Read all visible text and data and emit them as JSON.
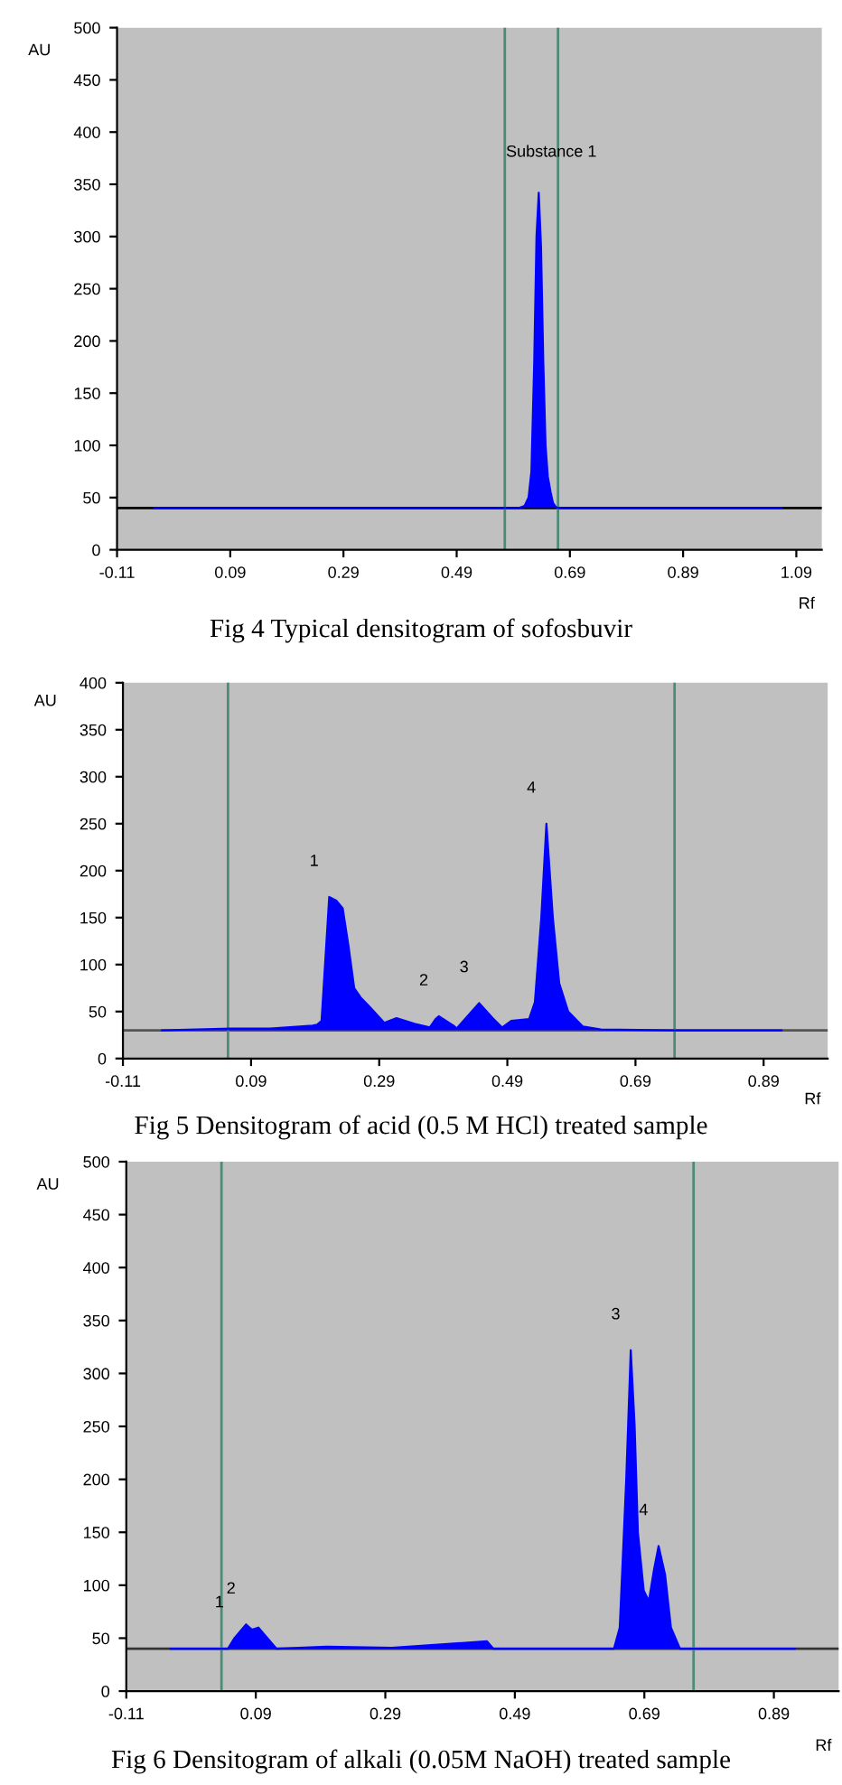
{
  "chart_data": [
    {
      "type": "area",
      "title": "Fig 4 Typical densitogram of sofosbuvir",
      "xlabel": "Rf",
      "ylabel": "AU",
      "x": [
        -0.045,
        0.5,
        0.6,
        0.61,
        0.617,
        0.622,
        0.627,
        0.631,
        0.635,
        0.639,
        0.643,
        0.647,
        0.651,
        0.656,
        0.66,
        0.665,
        0.67,
        0.8,
        1.064
      ],
      "series": [
        {
          "color": "#0000ff",
          "values": [
            40,
            40,
            40,
            42,
            50,
            75,
            180,
            300,
            342,
            290,
            180,
            100,
            70,
            55,
            45,
            41,
            40,
            40,
            40
          ]
        }
      ],
      "xlim": [
        -0.11,
        1.135
      ],
      "ylim": [
        0,
        500
      ],
      "xticks": [
        -0.11,
        0.09,
        0.29,
        0.49,
        0.69,
        0.89,
        1.09
      ],
      "yticks": [
        0,
        50,
        100,
        150,
        200,
        250,
        300,
        350,
        400,
        450,
        500
      ],
      "ref_lines": [
        {
          "axis": "y",
          "value": 40,
          "color": "#000000"
        },
        {
          "axis": "x",
          "value": 0.575,
          "color": "#4e8a78"
        },
        {
          "axis": "x",
          "value": 0.669,
          "color": "#4e8a78"
        }
      ],
      "annotations": [
        {
          "text": "Substance 1",
          "x": 0.635,
          "y": 342
        }
      ],
      "grid": false,
      "legend": false
    },
    {
      "type": "area",
      "title": "Fig 5 Densitogram of acid (0.5 M HCl) treated sample",
      "xlabel": "Rf",
      "ylabel": "AU",
      "x": [
        -0.049,
        0.059,
        0.12,
        0.186,
        0.193,
        0.2,
        0.212,
        0.223,
        0.233,
        0.242,
        0.251,
        0.261,
        0.275,
        0.298,
        0.317,
        0.345,
        0.369,
        0.378,
        0.383,
        0.406,
        0.411,
        0.446,
        0.467,
        0.482,
        0.496,
        0.524,
        0.533,
        0.543,
        0.551,
        0.561,
        0.571,
        0.585,
        0.608,
        0.636,
        0.749,
        0.918
      ],
      "series": [
        {
          "color": "#0000ff",
          "values": [
            30,
            32,
            32,
            35,
            36,
            40,
            172,
            168,
            160,
            120,
            75,
            65,
            55,
            38,
            43,
            37,
            33,
            42,
            45,
            35,
            32,
            59,
            43,
            33,
            40,
            42,
            60,
            150,
            250,
            150,
            80,
            50,
            34,
            31,
            30,
            30
          ]
        }
      ],
      "xlim": [
        -0.11,
        0.99
      ],
      "ylim": [
        0,
        400
      ],
      "xticks": [
        -0.11,
        0.09,
        0.29,
        0.49,
        0.69,
        0.89
      ],
      "yticks": [
        0,
        50,
        100,
        150,
        200,
        250,
        300,
        350,
        400
      ],
      "ref_lines": [
        {
          "axis": "y",
          "value": 30,
          "color": "#555555"
        },
        {
          "axis": "x",
          "value": 0.054,
          "color": "#4e8a78"
        },
        {
          "axis": "x",
          "value": 0.751,
          "color": "#4e8a78"
        }
      ],
      "annotations": [
        {
          "text": "1",
          "x": 0.212,
          "y": 172
        },
        {
          "text": "2",
          "x": 0.383,
          "y": 45
        },
        {
          "text": "3",
          "x": 0.446,
          "y": 59
        },
        {
          "text": "4",
          "x": 0.551,
          "y": 250
        }
      ],
      "grid": false,
      "legend": false
    },
    {
      "type": "area",
      "title": "Fig 6 Densitogram of alkali (0.05M NaOH) treated sample",
      "xlabel": "Rf",
      "ylabel": "AU",
      "x": [
        -0.041,
        0.047,
        0.057,
        0.075,
        0.084,
        0.094,
        0.108,
        0.122,
        0.2,
        0.3,
        0.447,
        0.457,
        0.643,
        0.652,
        0.662,
        0.669,
        0.675,
        0.68,
        0.689,
        0.697,
        0.705,
        0.712,
        0.722,
        0.731,
        0.745,
        0.922
      ],
      "series": [
        {
          "color": "#0000ff",
          "values": [
            40,
            40,
            50,
            63,
            58,
            60,
            50,
            40,
            42,
            41,
            47,
            40,
            40,
            60,
            200,
            322,
            250,
            150,
            95,
            85,
            115,
            137,
            110,
            60,
            40,
            40
          ]
        }
      ],
      "xlim": [
        -0.11,
        0.99
      ],
      "ylim": [
        0,
        500
      ],
      "xticks": [
        -0.11,
        0.09,
        0.29,
        0.49,
        0.69,
        0.89
      ],
      "yticks": [
        0,
        50,
        100,
        150,
        200,
        250,
        300,
        350,
        400,
        450,
        500
      ],
      "ref_lines": [
        {
          "axis": "y",
          "value": 40,
          "color": "#333333"
        },
        {
          "axis": "x",
          "value": 0.037,
          "color": "#4e8a78"
        },
        {
          "axis": "x",
          "value": 0.766,
          "color": "#4e8a78"
        }
      ],
      "annotations": [
        {
          "text": "1",
          "x": 0.057,
          "y": 50
        },
        {
          "text": "2",
          "x": 0.075,
          "y": 63
        },
        {
          "text": "3",
          "x": 0.669,
          "y": 322
        },
        {
          "text": "4",
          "x": 0.712,
          "y": 137
        }
      ],
      "grid": false,
      "legend": false
    }
  ]
}
